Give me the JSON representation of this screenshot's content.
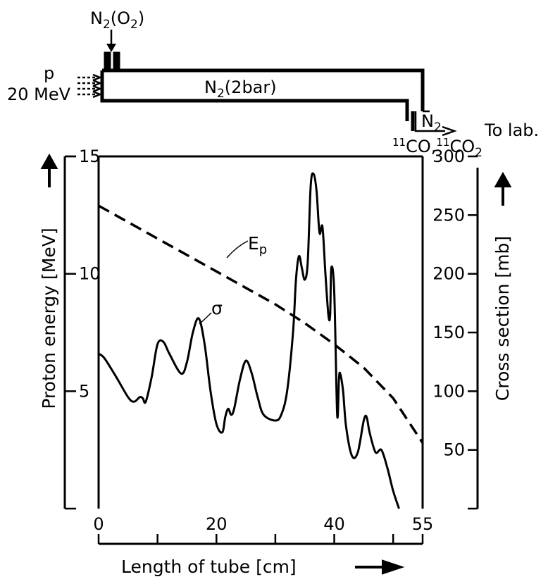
{
  "diagram": {
    "inlet_label": "N2(O2)",
    "beam_label_p": "p",
    "beam_label_energy": "20 MeV",
    "tube_label": "N2(2bar)",
    "outlet_gas_label": "N2",
    "products_label": "11CO,11CO2",
    "to_lab_label": "To lab."
  },
  "chart_data": {
    "type": "line",
    "xlabel": "Length of tube [cm]",
    "ylabel_left": "Proton energy [MeV]",
    "ylabel_right": "Cross section [mb]",
    "xlim": [
      0,
      55
    ],
    "ylim_left": [
      0,
      15
    ],
    "ylim_right": [
      0,
      300
    ],
    "x_ticks": [
      0,
      20,
      40,
      55
    ],
    "y_ticks_left": [
      5,
      10,
      15
    ],
    "y_ticks_right": [
      50,
      100,
      150,
      200,
      250,
      300
    ],
    "grid": false,
    "series": [
      {
        "name": "Ep",
        "axis": "left",
        "style": "dashed",
        "x": [
          0,
          5,
          10,
          15,
          20,
          25,
          30,
          35,
          40,
          45,
          50,
          55
        ],
        "y": [
          12.9,
          12.2,
          11.5,
          10.8,
          10.1,
          9.4,
          8.7,
          7.9,
          7.0,
          6.0,
          4.7,
          2.8
        ]
      },
      {
        "name": "σ",
        "axis": "right",
        "style": "solid",
        "x": [
          0,
          1,
          3,
          5,
          6,
          7,
          7.5,
          8,
          9,
          10,
          11,
          12,
          14,
          15,
          16,
          17,
          18,
          19,
          20,
          21,
          21.5,
          22,
          22.5,
          23,
          24,
          25,
          26,
          27,
          28,
          30,
          31,
          32,
          33,
          33.5,
          34,
          34.5,
          35,
          35.5,
          36,
          36.5,
          37,
          37.5,
          38,
          38.5,
          39,
          39.3,
          39.5,
          40,
          40.5,
          40.8,
          41,
          41.5,
          42,
          43,
          44,
          45,
          45.5,
          46,
          47,
          48,
          49,
          50,
          51
        ],
        "y": [
          132,
          128,
          112,
          95,
          91,
          95,
          94,
          91,
          112,
          140,
          142,
          132,
          115,
          125,
          150,
          162,
          140,
          100,
          72,
          65,
          78,
          85,
          80,
          85,
          110,
          126,
          115,
          95,
          80,
          75,
          80,
          100,
          150,
          195,
          215,
          205,
          195,
          210,
          275,
          285,
          270,
          235,
          240,
          200,
          165,
          165,
          205,
          185,
          80,
          110,
          115,
          100,
          70,
          45,
          48,
          75,
          78,
          65,
          48,
          50,
          35,
          15,
          0
        ]
      }
    ],
    "annotations": [
      "Ep",
      "σ"
    ]
  }
}
